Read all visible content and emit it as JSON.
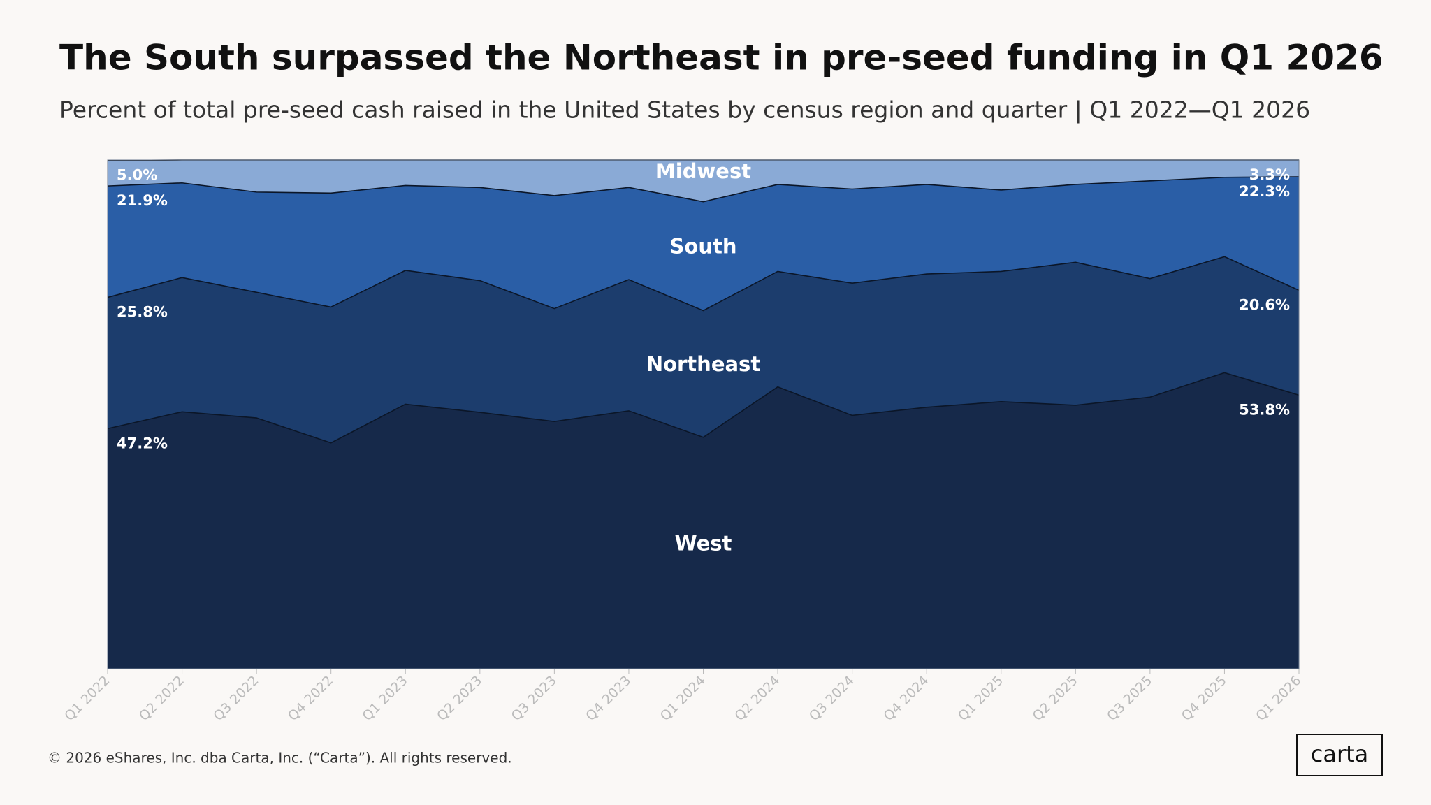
{
  "chart_data": {
    "type": "stacked-area",
    "title": "The South surpassed the Northeast in pre-seed funding in Q1 2026",
    "subtitle": "Percent of total pre-seed cash raised in the United States by census region and quarter | Q1 2022—Q1 2026",
    "categories": [
      "Q1 2022",
      "Q2 2022",
      "Q3 2022",
      "Q4 2022",
      "Q1 2023",
      "Q2 2023",
      "Q3 2023",
      "Q4 2023",
      "Q1 2024",
      "Q2 2024",
      "Q3 2024",
      "Q4 2024",
      "Q1 2025",
      "Q2 2025",
      "Q3 2025",
      "Q4 2025",
      "Q1 2026"
    ],
    "ylim": [
      0,
      100
    ],
    "series": [
      {
        "name": "West",
        "color": "#16294a",
        "values": [
          47.2,
          50.5,
          49.3,
          44.4,
          52.0,
          50.4,
          48.6,
          50.7,
          45.5,
          55.4,
          49.8,
          51.4,
          52.5,
          51.8,
          53.4,
          58.2,
          53.8
        ],
        "value_labels": [
          "47.2%",
          null,
          null,
          null,
          null,
          null,
          null,
          null,
          null,
          null,
          null,
          null,
          null,
          null,
          null,
          null,
          "53.8%"
        ]
      },
      {
        "name": "Northeast",
        "color": "#1c3d6d",
        "values": [
          25.8,
          26.4,
          24.7,
          26.7,
          26.3,
          25.9,
          22.2,
          25.8,
          24.9,
          22.7,
          26.0,
          26.2,
          25.6,
          28.1,
          23.3,
          22.8,
          20.6
        ],
        "value_labels": [
          "25.8%",
          null,
          null,
          null,
          null,
          null,
          null,
          null,
          null,
          null,
          null,
          null,
          null,
          null,
          null,
          null,
          "20.6%"
        ]
      },
      {
        "name": "South",
        "color": "#2a5ea6",
        "values": [
          21.9,
          18.6,
          19.7,
          22.4,
          16.7,
          18.3,
          22.2,
          18.1,
          21.4,
          17.1,
          18.5,
          17.6,
          16.0,
          15.3,
          19.2,
          15.6,
          22.3
        ],
        "value_labels": [
          "21.9%",
          null,
          null,
          null,
          null,
          null,
          null,
          null,
          null,
          null,
          null,
          null,
          null,
          null,
          null,
          null,
          "22.3%"
        ]
      },
      {
        "name": "Midwest",
        "color": "#8aaad6",
        "values": [
          5.0,
          4.5,
          6.3,
          6.5,
          5.0,
          5.4,
          7.0,
          5.4,
          8.2,
          4.8,
          5.7,
          4.8,
          5.9,
          4.8,
          4.1,
          3.4,
          3.3
        ],
        "value_labels": [
          "5.0%",
          null,
          null,
          null,
          null,
          null,
          null,
          null,
          null,
          null,
          null,
          null,
          null,
          null,
          null,
          null,
          "3.3%"
        ]
      }
    ]
  },
  "footer": "© 2026 eShares, Inc. dba Carta, Inc. (“Carta”). All rights reserved.",
  "logo": "carta"
}
